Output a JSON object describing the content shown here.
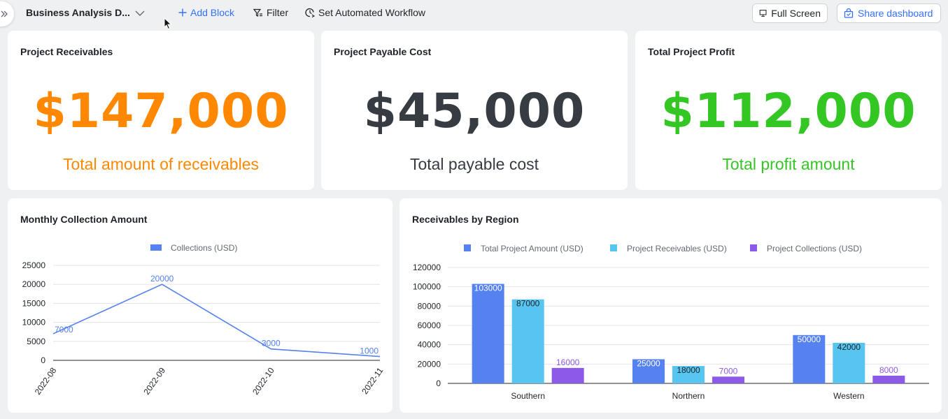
{
  "toolbar": {
    "title": "Business Analysis D...",
    "add_block": "Add Block",
    "filter": "Filter",
    "workflow": "Set Automated Workflow",
    "full_screen": "Full Screen",
    "share": "Share dashboard"
  },
  "kpis": [
    {
      "title": "Project Receivables",
      "value": "$147,000",
      "label": "Total amount of receivables",
      "color": "#ff8800"
    },
    {
      "title": "Project Payable Cost",
      "value": "$45,000",
      "label": "Total payable cost",
      "color": "#373c43"
    },
    {
      "title": "Total Project Profit",
      "value": "$112,000",
      "label": "Total profit amount",
      "color": "#34c724"
    }
  ],
  "chart_data": [
    {
      "type": "line",
      "title": "Monthly Collection Amount",
      "categories": [
        "2022-08",
        "2022-09",
        "2022-10",
        "2022-11"
      ],
      "series": [
        {
          "name": "Collections (USD)",
          "values": [
            7000,
            20000,
            3000,
            1000
          ],
          "color": "#5582f0"
        }
      ],
      "yticks": [
        0,
        5000,
        10000,
        15000,
        20000,
        25000
      ],
      "ylim": [
        0,
        25000
      ],
      "legend": "top-center",
      "grid": true
    },
    {
      "type": "bar",
      "title": "Receivables by Region",
      "categories": [
        "Southern",
        "Northern",
        "Western"
      ],
      "series": [
        {
          "name": "Total Project Amount (USD)",
          "values": [
            103000,
            25000,
            50000
          ],
          "color": "#5582f0"
        },
        {
          "name": "Project Receivables (USD)",
          "values": [
            87000,
            18000,
            42000
          ],
          "color": "#56c5f0"
        },
        {
          "name": "Project Collections (USD)",
          "values": [
            16000,
            7000,
            8000
          ],
          "color": "#8c5ae8"
        }
      ],
      "yticks": [
        0,
        20000,
        40000,
        60000,
        80000,
        100000,
        120000
      ],
      "ylim": [
        0,
        120000
      ],
      "legend": "top-center",
      "grid": true
    }
  ]
}
